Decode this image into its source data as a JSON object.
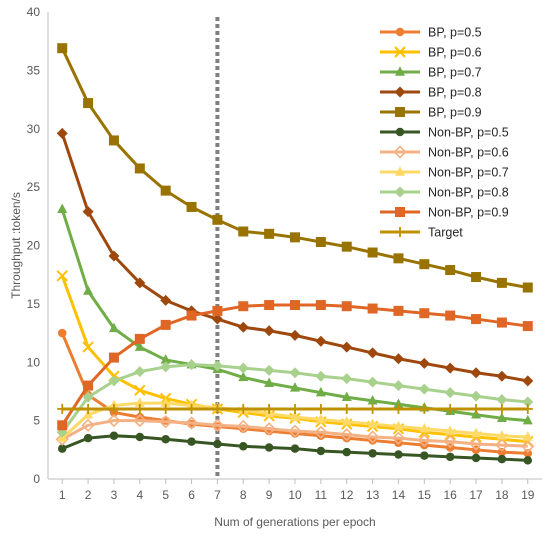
{
  "chart_data": {
    "type": "line",
    "title": "",
    "xlabel": "Num of generations per epoch",
    "ylabel": "Throughput :token/s",
    "x": [
      1,
      2,
      3,
      4,
      5,
      6,
      7,
      8,
      9,
      10,
      11,
      12,
      13,
      14,
      15,
      16,
      17,
      18,
      19
    ],
    "ylim": [
      0,
      40
    ],
    "yticks": [
      0,
      5,
      10,
      15,
      20,
      25,
      30,
      35,
      40
    ],
    "grid": false,
    "legend_position": "top-right",
    "vertical_marker_x": 7,
    "series": [
      {
        "name": "BP, p=0.5",
        "color": "#ED7D31",
        "marker": "circle",
        "values": [
          12.5,
          7.2,
          5.7,
          5.3,
          5.0,
          4.7,
          4.5,
          4.3,
          4.1,
          3.9,
          3.7,
          3.5,
          3.3,
          3.1,
          2.9,
          2.7,
          2.5,
          2.3,
          2.2
        ]
      },
      {
        "name": "BP, p=0.6",
        "color": "#FFC000",
        "marker": "x",
        "values": [
          17.4,
          11.3,
          8.8,
          7.6,
          6.9,
          6.4,
          6.0,
          5.7,
          5.4,
          5.2,
          4.9,
          4.7,
          4.5,
          4.3,
          4.0,
          3.8,
          3.6,
          3.4,
          3.2
        ]
      },
      {
        "name": "BP, p=0.7",
        "color": "#70AD47",
        "marker": "triangle",
        "values": [
          23.1,
          16.1,
          12.9,
          11.3,
          10.2,
          9.8,
          9.4,
          8.7,
          8.2,
          7.8,
          7.4,
          7.0,
          6.7,
          6.4,
          6.1,
          5.8,
          5.5,
          5.2,
          5.0
        ]
      },
      {
        "name": "BP, p=0.8",
        "color": "#9E480E",
        "marker": "diamond",
        "values": [
          29.6,
          22.9,
          19.1,
          16.8,
          15.3,
          14.4,
          13.7,
          13.0,
          12.7,
          12.3,
          11.8,
          11.3,
          10.8,
          10.3,
          9.9,
          9.5,
          9.1,
          8.8,
          8.4
        ]
      },
      {
        "name": "BP, p=0.9",
        "color": "#997300",
        "marker": "square",
        "values": [
          36.9,
          32.2,
          29.0,
          26.6,
          24.7,
          23.3,
          22.2,
          21.2,
          21.0,
          20.7,
          20.3,
          19.9,
          19.4,
          18.9,
          18.4,
          17.9,
          17.3,
          16.8,
          16.4
        ]
      },
      {
        "name": "Non-BP, p=0.5",
        "color": "#375623",
        "marker": "circle",
        "values": [
          2.6,
          3.5,
          3.7,
          3.6,
          3.4,
          3.2,
          3.0,
          2.8,
          2.7,
          2.6,
          2.4,
          2.3,
          2.2,
          2.1,
          2.0,
          1.9,
          1.8,
          1.7,
          1.6
        ]
      },
      {
        "name": "Non-BP, p=0.6",
        "color": "#F4B183",
        "marker": "diamond-open",
        "values": [
          3.4,
          4.6,
          5.0,
          5.0,
          4.9,
          4.8,
          4.6,
          4.5,
          4.3,
          4.1,
          4.0,
          3.8,
          3.6,
          3.5,
          3.3,
          3.2,
          3.0,
          2.9,
          2.8
        ]
      },
      {
        "name": "Non-BP, p=0.7",
        "color": "#FFD966",
        "marker": "triangle",
        "values": [
          3.5,
          5.5,
          6.3,
          6.5,
          6.5,
          6.3,
          6.1,
          5.9,
          5.6,
          5.3,
          5.1,
          4.9,
          4.7,
          4.5,
          4.3,
          4.1,
          3.9,
          3.7,
          3.6
        ]
      },
      {
        "name": "Non-BP, p=0.8",
        "color": "#A9D18E",
        "marker": "diamond",
        "values": [
          4.0,
          7.0,
          8.4,
          9.2,
          9.6,
          9.8,
          9.7,
          9.5,
          9.3,
          9.1,
          8.8,
          8.6,
          8.3,
          8.0,
          7.7,
          7.4,
          7.1,
          6.8,
          6.6
        ]
      },
      {
        "name": "Non-BP, p=0.9",
        "color": "#E06626",
        "marker": "square",
        "values": [
          4.6,
          8.0,
          10.4,
          12.0,
          13.2,
          14.0,
          14.4,
          14.8,
          14.9,
          14.9,
          14.9,
          14.8,
          14.6,
          14.4,
          14.2,
          14.0,
          13.7,
          13.4,
          13.1
        ]
      },
      {
        "name": "Target",
        "color": "#BF9000",
        "marker": "plus",
        "values": [
          6,
          6,
          6,
          6,
          6,
          6,
          6,
          6,
          6,
          6,
          6,
          6,
          6,
          6,
          6,
          6,
          6,
          6,
          6
        ]
      }
    ]
  }
}
